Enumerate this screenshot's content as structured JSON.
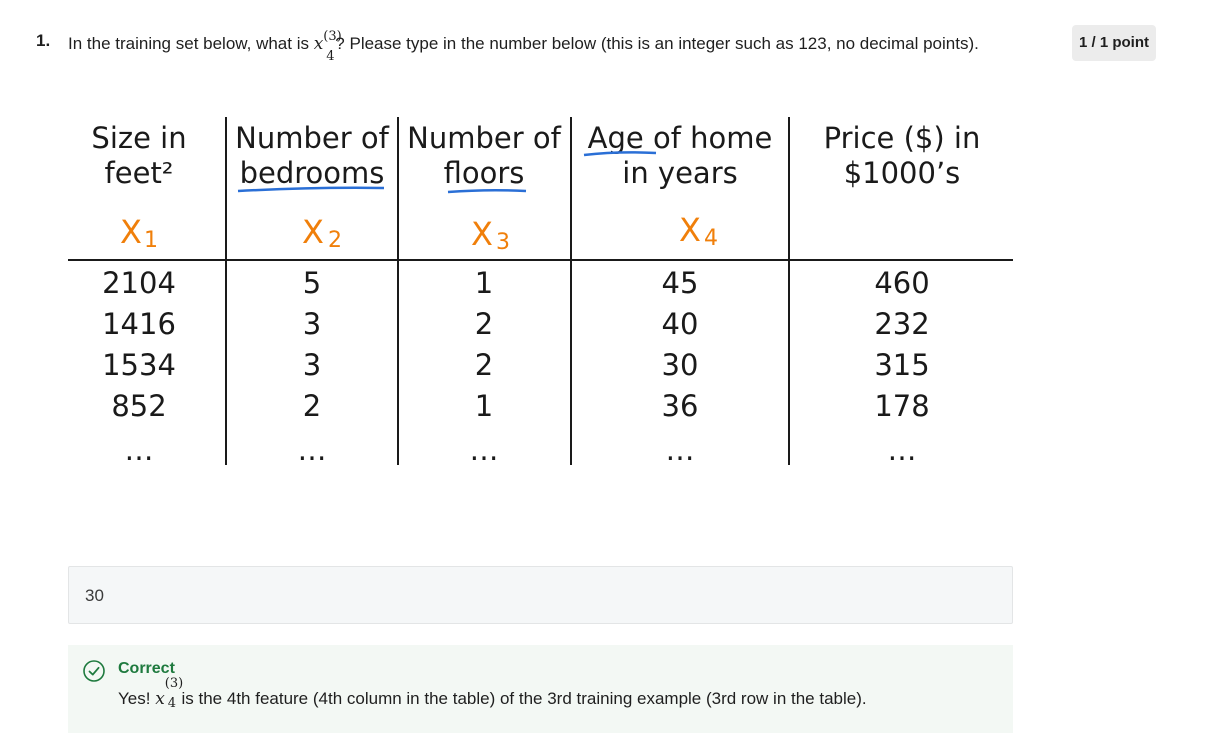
{
  "question": {
    "number": "1.",
    "text_before": "In the training set below, what is ",
    "var": "x",
    "var_sup": "(3)",
    "var_sub": "4",
    "text_after": "? Please type in the number below (this is an integer such as 123, no decimal points)."
  },
  "points": "1 / 1 point",
  "table": {
    "headers": [
      [
        "Size in",
        "feet²"
      ],
      [
        "Number of",
        "bedrooms"
      ],
      [
        "Number of",
        "floors"
      ],
      [
        "Age of home",
        "in years"
      ],
      [
        "Price ($) in",
        "$1000’s"
      ]
    ],
    "feature_labels": [
      "X",
      "X",
      "X",
      "X"
    ],
    "feature_subs": [
      "1",
      "2",
      "3",
      "4"
    ],
    "rows": [
      [
        "2104",
        "5",
        "1",
        "45",
        "460"
      ],
      [
        "1416",
        "3",
        "2",
        "40",
        "232"
      ],
      [
        "1534",
        "3",
        "2",
        "30",
        "315"
      ],
      [
        "852",
        "2",
        "1",
        "36",
        "178"
      ],
      [
        "…",
        "…",
        "…",
        "…",
        "…"
      ]
    ]
  },
  "answer": {
    "value": "30"
  },
  "feedback": {
    "title": "Correct",
    "text_before": "Yes! ",
    "var": "x",
    "var_sup": "(3)",
    "var_sub": "4",
    "text_after": " is the 4th feature (4th column in the table) of the 3rd training example (3rd row in the table)."
  },
  "colors": {
    "correct": "#1e7a3e",
    "orange": "#f07f0a",
    "underline_blue": "#2a6fd6"
  },
  "icons": {
    "feedback": "check-circle-icon"
  }
}
